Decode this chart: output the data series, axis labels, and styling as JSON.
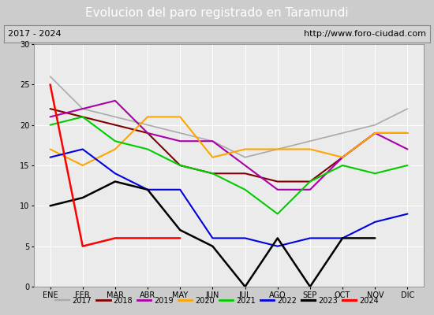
{
  "title": "Evolucion del paro registrado en Taramundi",
  "subtitle_left": "2017 - 2024",
  "subtitle_right": "http://www.foro-ciudad.com",
  "months": [
    "ENE",
    "FEB",
    "MAR",
    "ABR",
    "MAY",
    "JUN",
    "JUL",
    "AGO",
    "SEP",
    "OCT",
    "NOV",
    "DIC"
  ],
  "series": {
    "2017": {
      "data": [
        26,
        22,
        21,
        20,
        19,
        18,
        16,
        17,
        18,
        19,
        20,
        22
      ],
      "color": "#aaaaaa",
      "lw": 1.2
    },
    "2018": {
      "data": [
        22,
        21,
        20,
        19,
        15,
        14,
        14,
        13,
        13,
        16,
        19,
        19
      ],
      "color": "#800000",
      "lw": 1.5
    },
    "2019": {
      "data": [
        21,
        22,
        23,
        19,
        18,
        18,
        15,
        12,
        12,
        16,
        19,
        17
      ],
      "color": "#aa00aa",
      "lw": 1.5
    },
    "2020": {
      "data": [
        17,
        15,
        17,
        21,
        21,
        16,
        17,
        17,
        17,
        16,
        19,
        19
      ],
      "color": "#ffa500",
      "lw": 1.5
    },
    "2021": {
      "data": [
        20,
        21,
        18,
        17,
        15,
        14,
        12,
        9,
        13,
        15,
        14,
        15
      ],
      "color": "#00cc00",
      "lw": 1.5
    },
    "2022": {
      "data": [
        16,
        17,
        14,
        12,
        12,
        6,
        6,
        5,
        6,
        6,
        8,
        9
      ],
      "color": "#0000dd",
      "lw": 1.5
    },
    "2023": {
      "data": [
        10,
        11,
        13,
        12,
        7,
        5,
        0,
        6,
        0,
        6,
        6,
        null
      ],
      "color": "#000000",
      "lw": 1.8
    },
    "2024": {
      "data": [
        25,
        5,
        6,
        6,
        6,
        null,
        null,
        null,
        null,
        null,
        null,
        null
      ],
      "color": "#ff0000",
      "lw": 1.8
    }
  },
  "ylim": [
    0,
    30
  ],
  "yticks": [
    0,
    5,
    10,
    15,
    20,
    25,
    30
  ],
  "bg_color": "#cccccc",
  "plot_bg_color": "#ebebeb",
  "title_bg_color": "#4a86b8",
  "title_color": "white",
  "header_bg_color": "#d4d4d4",
  "header_border_color": "#888888",
  "title_fontsize": 11,
  "header_fontsize": 8,
  "legend_fontsize": 7,
  "tick_fontsize": 7
}
